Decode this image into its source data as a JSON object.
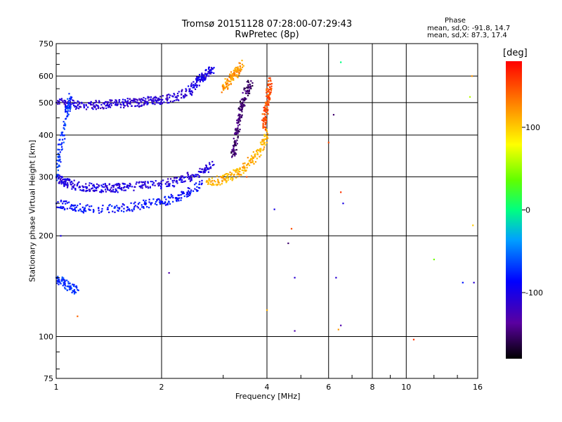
{
  "header": {
    "title": "Tromsø 20151128 07:28:00-07:29:43",
    "subtitle": "RwPretec (8p)"
  },
  "stats": {
    "heading": "Phase",
    "line_o": "mean, sd,O: -91.8, 14.7",
    "line_x": "mean, sd,X:  87.3, 17.4"
  },
  "colorbar": {
    "unit": "[deg]",
    "ticks": [
      "100",
      "0",
      "-100"
    ],
    "range": [
      -180,
      180
    ],
    "scale": "rainbow"
  },
  "chart_data": {
    "type": "scatter",
    "title": "Tromsø 20151128 07:28:00-07:29:43",
    "subtitle": "RwPretec (8p)",
    "xlabel": "Frequency [MHz]",
    "ylabel": "Stationary phase Virtual Height [km]",
    "xscale": "log",
    "yscale": "log",
    "xlim": [
      1,
      16
    ],
    "ylim": [
      75,
      750
    ],
    "x_ticks": [
      "1",
      "2",
      "4",
      "6",
      "8",
      "10",
      "16"
    ],
    "y_ticks": [
      "750",
      "600",
      "500",
      "400",
      "300",
      "200",
      "100",
      "75"
    ],
    "grid": true,
    "color_by": "phase [deg]",
    "series": [
      {
        "x": [
          1.0,
          1.1,
          1.2,
          1.3,
          1.4,
          1.5,
          1.6,
          1.7,
          1.8,
          1.9,
          2.0,
          2.2,
          2.4
        ],
        "y": [
          500,
          495,
          490,
          492,
          495,
          495,
          500,
          500,
          505,
          505,
          510,
          520,
          540
        ],
        "phase": -110
      },
      {
        "x": [
          2.4,
          2.5,
          2.6,
          2.7,
          2.8
        ],
        "y": [
          540,
          570,
          590,
          610,
          630
        ],
        "phase": -100
      },
      {
        "x": [
          1.0,
          1.05,
          1.1,
          1.2,
          1.3,
          1.4,
          1.5,
          1.6,
          1.8,
          2.0,
          2.2,
          2.4,
          2.6,
          2.8
        ],
        "y": [
          300,
          290,
          285,
          280,
          278,
          278,
          278,
          280,
          282,
          285,
          290,
          300,
          310,
          325
        ],
        "phase": -105
      },
      {
        "x": [
          1.0,
          1.1,
          1.2,
          1.4,
          1.6,
          1.8,
          2.0,
          2.2,
          2.4,
          2.6
        ],
        "y": [
          250,
          245,
          240,
          240,
          243,
          248,
          253,
          260,
          270,
          285
        ],
        "phase": -85
      },
      {
        "x": [
          1.0,
          1.02,
          1.05,
          1.08,
          1.1
        ],
        "y": [
          300,
          350,
          420,
          480,
          520
        ],
        "phase": -70
      },
      {
        "x": [
          2.7,
          2.9,
          3.1,
          3.3,
          3.5,
          3.7,
          3.9,
          4.0
        ],
        "y": [
          290,
          292,
          298,
          310,
          325,
          345,
          375,
          410
        ],
        "phase": 110
      },
      {
        "x": [
          3.0,
          3.1,
          3.2,
          3.3,
          3.4
        ],
        "y": [
          550,
          580,
          600,
          620,
          650
        ],
        "phase": 120
      },
      {
        "x": [
          3.2,
          3.25,
          3.3,
          3.35,
          3.4,
          3.5,
          3.6
        ],
        "y": [
          350,
          380,
          420,
          460,
          500,
          540,
          580
        ],
        "phase": -150
      },
      {
        "x": [
          3.9,
          3.95,
          4.0,
          4.05,
          4.1
        ],
        "y": [
          420,
          460,
          500,
          540,
          580
        ],
        "phase": 150
      },
      {
        "x": [
          1.0,
          1.05,
          1.1,
          1.15
        ],
        "y": [
          150,
          145,
          140,
          138
        ],
        "phase": -70
      }
    ],
    "scattered_points": [
      {
        "x": 1.03,
        "y": 200,
        "phase": -100
      },
      {
        "x": 1.15,
        "y": 115,
        "phase": 140
      },
      {
        "x": 2.1,
        "y": 155,
        "phase": -130
      },
      {
        "x": 3.5,
        "y": 300,
        "phase": 150
      },
      {
        "x": 4.2,
        "y": 240,
        "phase": -100
      },
      {
        "x": 4.7,
        "y": 210,
        "phase": 150
      },
      {
        "x": 4.6,
        "y": 190,
        "phase": -150
      },
      {
        "x": 4.8,
        "y": 150,
        "phase": -110
      },
      {
        "x": 4.8,
        "y": 104,
        "phase": -130
      },
      {
        "x": 4.0,
        "y": 120,
        "phase": 110
      },
      {
        "x": 6.0,
        "y": 380,
        "phase": 150
      },
      {
        "x": 6.2,
        "y": 460,
        "phase": -150
      },
      {
        "x": 6.5,
        "y": 660,
        "phase": 0
      },
      {
        "x": 6.5,
        "y": 270,
        "phase": 160
      },
      {
        "x": 6.6,
        "y": 250,
        "phase": -100
      },
      {
        "x": 6.3,
        "y": 150,
        "phase": -110
      },
      {
        "x": 6.4,
        "y": 105,
        "phase": 120
      },
      {
        "x": 6.5,
        "y": 108,
        "phase": -130
      },
      {
        "x": 10.5,
        "y": 98,
        "phase": 160
      },
      {
        "x": 12.0,
        "y": 170,
        "phase": 40
      },
      {
        "x": 14.5,
        "y": 145,
        "phase": -80
      },
      {
        "x": 15.2,
        "y": 520,
        "phase": 60
      },
      {
        "x": 15.4,
        "y": 600,
        "phase": 120
      },
      {
        "x": 15.6,
        "y": 145,
        "phase": -110
      },
      {
        "x": 15.5,
        "y": 215,
        "phase": 100
      }
    ]
  }
}
